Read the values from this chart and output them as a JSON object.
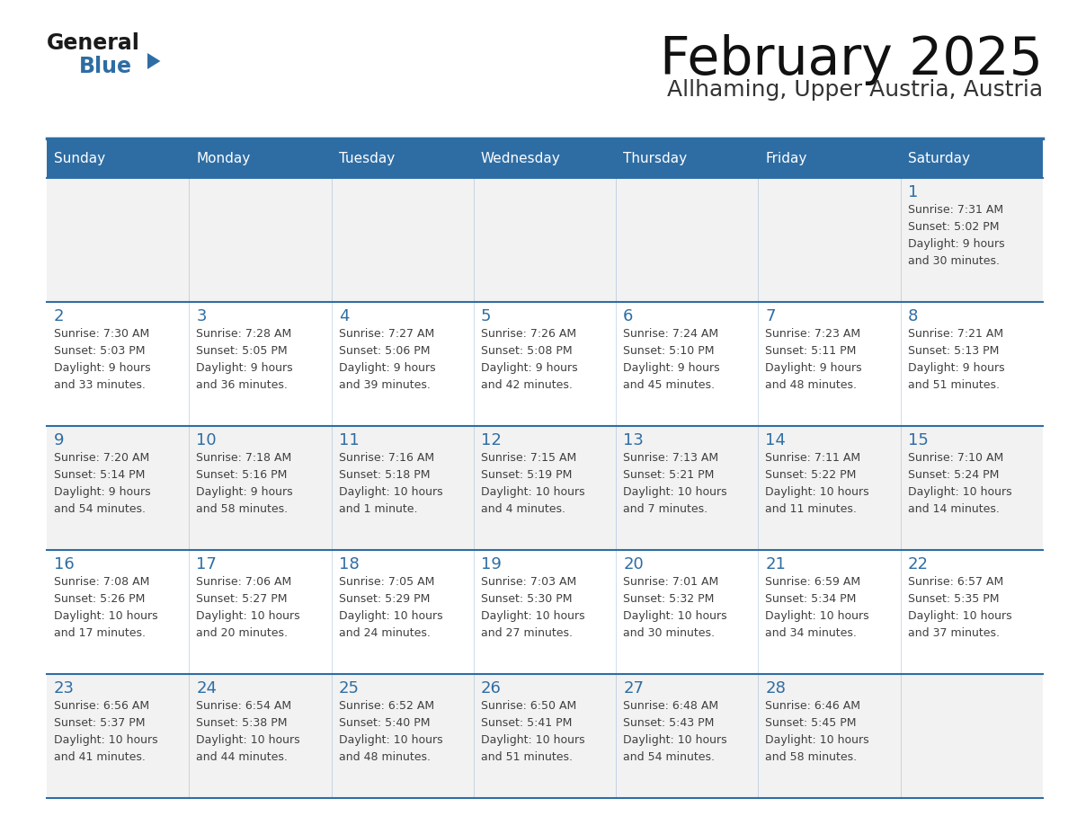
{
  "title": "February 2025",
  "subtitle": "Allhaming, Upper Austria, Austria",
  "days_of_week": [
    "Sunday",
    "Monday",
    "Tuesday",
    "Wednesday",
    "Thursday",
    "Friday",
    "Saturday"
  ],
  "header_bg": "#2E6DA4",
  "header_text": "#FFFFFF",
  "row_bg_light": "#F2F2F2",
  "row_bg_white": "#FFFFFF",
  "cell_border": "#2E6DA4",
  "day_number_color": "#2E6DA4",
  "text_color": "#404040",
  "logo_general_color": "#1a1a1a",
  "logo_blue_color": "#2E6DA4",
  "calendar_data": [
    [
      {
        "day": null,
        "sunrise": null,
        "sunset": null,
        "daylight": null
      },
      {
        "day": null,
        "sunrise": null,
        "sunset": null,
        "daylight": null
      },
      {
        "day": null,
        "sunrise": null,
        "sunset": null,
        "daylight": null
      },
      {
        "day": null,
        "sunrise": null,
        "sunset": null,
        "daylight": null
      },
      {
        "day": null,
        "sunrise": null,
        "sunset": null,
        "daylight": null
      },
      {
        "day": null,
        "sunrise": null,
        "sunset": null,
        "daylight": null
      },
      {
        "day": 1,
        "sunrise": "7:31 AM",
        "sunset": "5:02 PM",
        "daylight": "9 hours\nand 30 minutes."
      }
    ],
    [
      {
        "day": 2,
        "sunrise": "7:30 AM",
        "sunset": "5:03 PM",
        "daylight": "9 hours\nand 33 minutes."
      },
      {
        "day": 3,
        "sunrise": "7:28 AM",
        "sunset": "5:05 PM",
        "daylight": "9 hours\nand 36 minutes."
      },
      {
        "day": 4,
        "sunrise": "7:27 AM",
        "sunset": "5:06 PM",
        "daylight": "9 hours\nand 39 minutes."
      },
      {
        "day": 5,
        "sunrise": "7:26 AM",
        "sunset": "5:08 PM",
        "daylight": "9 hours\nand 42 minutes."
      },
      {
        "day": 6,
        "sunrise": "7:24 AM",
        "sunset": "5:10 PM",
        "daylight": "9 hours\nand 45 minutes."
      },
      {
        "day": 7,
        "sunrise": "7:23 AM",
        "sunset": "5:11 PM",
        "daylight": "9 hours\nand 48 minutes."
      },
      {
        "day": 8,
        "sunrise": "7:21 AM",
        "sunset": "5:13 PM",
        "daylight": "9 hours\nand 51 minutes."
      }
    ],
    [
      {
        "day": 9,
        "sunrise": "7:20 AM",
        "sunset": "5:14 PM",
        "daylight": "9 hours\nand 54 minutes."
      },
      {
        "day": 10,
        "sunrise": "7:18 AM",
        "sunset": "5:16 PM",
        "daylight": "9 hours\nand 58 minutes."
      },
      {
        "day": 11,
        "sunrise": "7:16 AM",
        "sunset": "5:18 PM",
        "daylight": "10 hours\nand 1 minute."
      },
      {
        "day": 12,
        "sunrise": "7:15 AM",
        "sunset": "5:19 PM",
        "daylight": "10 hours\nand 4 minutes."
      },
      {
        "day": 13,
        "sunrise": "7:13 AM",
        "sunset": "5:21 PM",
        "daylight": "10 hours\nand 7 minutes."
      },
      {
        "day": 14,
        "sunrise": "7:11 AM",
        "sunset": "5:22 PM",
        "daylight": "10 hours\nand 11 minutes."
      },
      {
        "day": 15,
        "sunrise": "7:10 AM",
        "sunset": "5:24 PM",
        "daylight": "10 hours\nand 14 minutes."
      }
    ],
    [
      {
        "day": 16,
        "sunrise": "7:08 AM",
        "sunset": "5:26 PM",
        "daylight": "10 hours\nand 17 minutes."
      },
      {
        "day": 17,
        "sunrise": "7:06 AM",
        "sunset": "5:27 PM",
        "daylight": "10 hours\nand 20 minutes."
      },
      {
        "day": 18,
        "sunrise": "7:05 AM",
        "sunset": "5:29 PM",
        "daylight": "10 hours\nand 24 minutes."
      },
      {
        "day": 19,
        "sunrise": "7:03 AM",
        "sunset": "5:30 PM",
        "daylight": "10 hours\nand 27 minutes."
      },
      {
        "day": 20,
        "sunrise": "7:01 AM",
        "sunset": "5:32 PM",
        "daylight": "10 hours\nand 30 minutes."
      },
      {
        "day": 21,
        "sunrise": "6:59 AM",
        "sunset": "5:34 PM",
        "daylight": "10 hours\nand 34 minutes."
      },
      {
        "day": 22,
        "sunrise": "6:57 AM",
        "sunset": "5:35 PM",
        "daylight": "10 hours\nand 37 minutes."
      }
    ],
    [
      {
        "day": 23,
        "sunrise": "6:56 AM",
        "sunset": "5:37 PM",
        "daylight": "10 hours\nand 41 minutes."
      },
      {
        "day": 24,
        "sunrise": "6:54 AM",
        "sunset": "5:38 PM",
        "daylight": "10 hours\nand 44 minutes."
      },
      {
        "day": 25,
        "sunrise": "6:52 AM",
        "sunset": "5:40 PM",
        "daylight": "10 hours\nand 48 minutes."
      },
      {
        "day": 26,
        "sunrise": "6:50 AM",
        "sunset": "5:41 PM",
        "daylight": "10 hours\nand 51 minutes."
      },
      {
        "day": 27,
        "sunrise": "6:48 AM",
        "sunset": "5:43 PM",
        "daylight": "10 hours\nand 54 minutes."
      },
      {
        "day": 28,
        "sunrise": "6:46 AM",
        "sunset": "5:45 PM",
        "daylight": "10 hours\nand 58 minutes."
      },
      {
        "day": null,
        "sunrise": null,
        "sunset": null,
        "daylight": null
      }
    ]
  ]
}
